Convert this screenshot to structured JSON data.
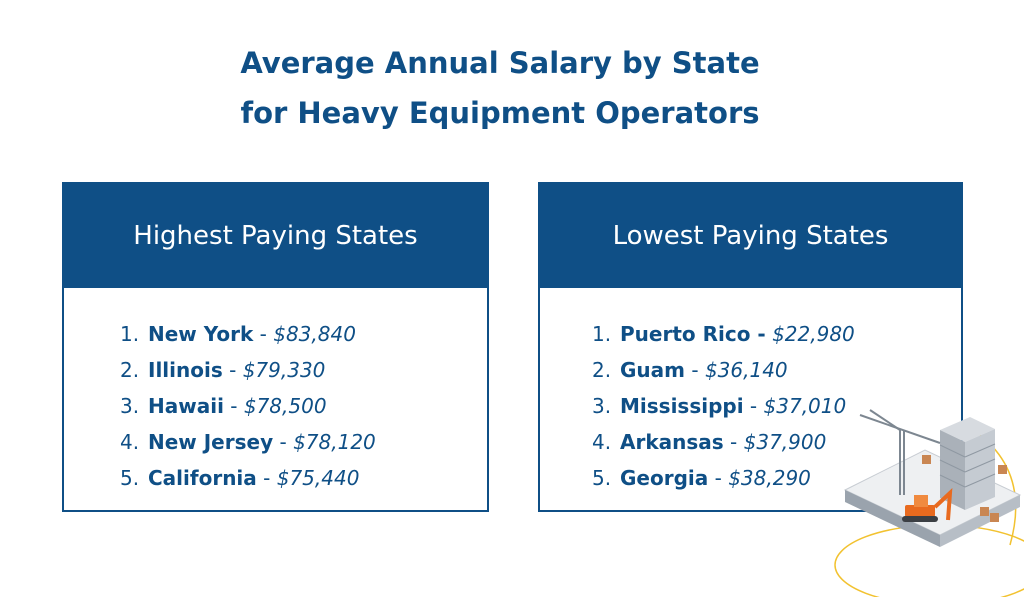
{
  "title": {
    "line1": "Average Annual Salary by State",
    "line2": "for Heavy Equipment Operators"
  },
  "highest": {
    "heading": "Highest Paying States",
    "items": [
      {
        "num": "1.",
        "state": "New York",
        "sep": " - ",
        "salary": "$83,840"
      },
      {
        "num": "2.",
        "state": "Illinois",
        "sep": " - ",
        "salary": "$79,330"
      },
      {
        "num": "3.",
        "state": "Hawaii",
        "sep": " - ",
        "salary": "$78,500"
      },
      {
        "num": "4.",
        "state": "New Jersey",
        "sep": " - ",
        "salary": "$78,120"
      },
      {
        "num": "5.",
        "state": "California",
        "sep": " - ",
        "salary": "$75,440"
      }
    ]
  },
  "lowest": {
    "heading": "Lowest Paying States",
    "items": [
      {
        "num": "1.",
        "state": "Puerto Rico -",
        "sep": " ",
        "salary": "$22,980"
      },
      {
        "num": "2.",
        "state": "Guam",
        "sep": " - ",
        "salary": "$36,140"
      },
      {
        "num": "3.",
        "state": "Mississippi",
        "sep": " - ",
        "salary": "$37,010"
      },
      {
        "num": "4.",
        "state": "Arkansas",
        "sep": " - ",
        "salary": "$37,900"
      },
      {
        "num": "5.",
        "state": "Georgia",
        "sep": " - ",
        "salary": "$38,290"
      }
    ]
  },
  "colors": {
    "brand": "#0f4f86",
    "accent": "#e86a1f",
    "ring": "#f2c230"
  },
  "illustration": "construction-site-icon"
}
